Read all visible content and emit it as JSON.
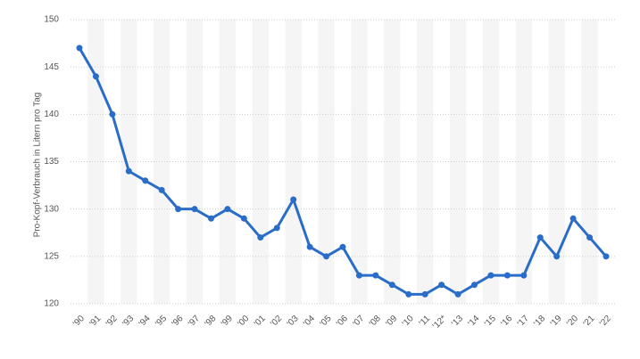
{
  "chart_data": {
    "type": "line",
    "y_label": "Pro-Kopf-Verbrauch in Litern pro Tag",
    "categories": [
      "'90",
      "'91",
      "'92",
      "'93",
      "'94",
      "'95",
      "'96",
      "'97",
      "'98",
      "'99",
      "'00",
      "'01",
      "'02",
      "'03",
      "'04",
      "'05",
      "'06",
      "'07",
      "'08",
      "'09",
      "'10",
      "'11",
      "'12*",
      "'13",
      "'14",
      "'15",
      "'16",
      "'17",
      "'18",
      "'19",
      "'20",
      "'21",
      "'22"
    ],
    "series": [
      {
        "color": "#2a6dc9",
        "values": [
          147,
          144,
          140,
          134,
          133,
          132,
          130,
          130,
          129,
          130,
          129,
          127,
          128,
          131,
          126,
          125,
          126,
          123,
          123,
          122,
          121,
          121,
          122,
          121,
          122,
          123,
          123,
          123,
          127,
          125,
          129,
          127,
          125
        ]
      }
    ],
    "ylim": [
      120,
      150
    ],
    "yticks": [
      120,
      125,
      130,
      135,
      140,
      145,
      150
    ],
    "grid": true
  }
}
